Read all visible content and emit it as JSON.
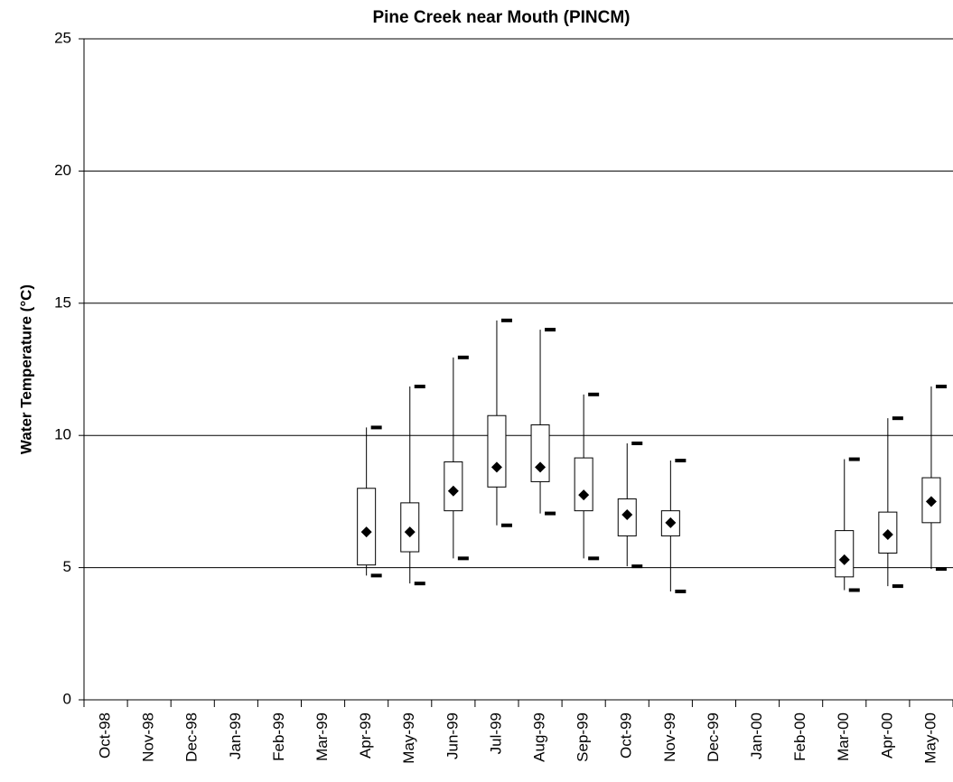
{
  "chart_data": {
    "type": "box",
    "title": "Pine Creek near Mouth (PINCM)",
    "y_label": "Water Temperature (°C)",
    "categories": [
      "Oct-98",
      "Nov-98",
      "Dec-98",
      "Jan-99",
      "Feb-99",
      "Mar-99",
      "Apr-99",
      "May-99",
      "Jun-99",
      "Jul-99",
      "Aug-99",
      "Sep-99",
      "Oct-99",
      "Nov-99",
      "Dec-99",
      "Jan-00",
      "Feb-00",
      "Mar-00",
      "Apr-00",
      "May-00"
    ],
    "min": [
      null,
      null,
      null,
      null,
      null,
      null,
      4.7,
      4.4,
      5.35,
      6.6,
      7.05,
      5.35,
      5.05,
      4.1,
      null,
      null,
      null,
      4.15,
      4.3,
      4.95
    ],
    "q1": [
      null,
      null,
      null,
      null,
      null,
      null,
      5.1,
      5.6,
      7.15,
      8.05,
      8.25,
      7.15,
      6.2,
      6.2,
      null,
      null,
      null,
      4.65,
      5.55,
      6.7
    ],
    "mean": [
      null,
      null,
      null,
      null,
      null,
      null,
      6.35,
      6.35,
      7.9,
      8.8,
      8.8,
      7.75,
      7.0,
      6.7,
      null,
      null,
      null,
      5.3,
      6.25,
      7.5
    ],
    "q3": [
      null,
      null,
      null,
      null,
      null,
      null,
      8.0,
      7.45,
      9.0,
      10.75,
      10.4,
      9.15,
      7.6,
      7.15,
      null,
      null,
      null,
      6.4,
      7.1,
      8.4
    ],
    "max": [
      null,
      null,
      null,
      null,
      null,
      null,
      10.3,
      11.85,
      12.95,
      14.35,
      14.0,
      11.55,
      9.7,
      9.05,
      null,
      null,
      null,
      9.1,
      10.65,
      11.85
    ],
    "ylim": [
      0,
      25
    ],
    "yticks": [
      0,
      5,
      10,
      15,
      20,
      25
    ],
    "grid": true,
    "color": "#000000",
    "box_fill": "#ffffff"
  }
}
